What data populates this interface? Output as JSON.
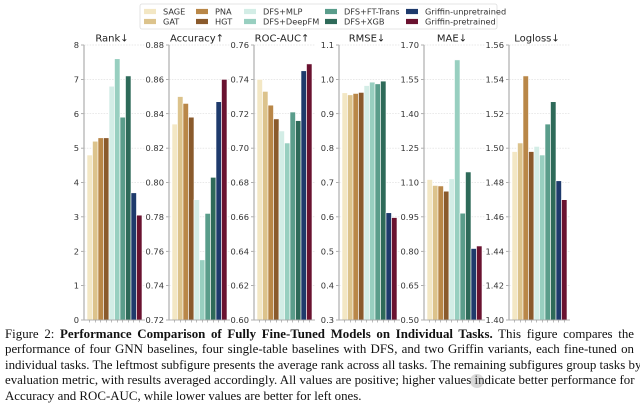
{
  "legend": {
    "entries": [
      {
        "name": "SAGE",
        "color": "#f3e7c4"
      },
      {
        "name": "GAT",
        "color": "#dcc38c"
      },
      {
        "name": "PNA",
        "color": "#b98748"
      },
      {
        "name": "HGT",
        "color": "#8a5a2c"
      },
      {
        "name": "DFS+MLP",
        "color": "#d3ede6"
      },
      {
        "name": "DFS+DeepFM",
        "color": "#98cfc0"
      },
      {
        "name": "DFS+FT-Trans",
        "color": "#5a9d8b"
      },
      {
        "name": "DFS+XGB",
        "color": "#2e6a59"
      },
      {
        "name": "Griffin-unpretrained",
        "color": "#1e3a6c"
      },
      {
        "name": "Griffin-pretrained",
        "color": "#6a1230"
      }
    ]
  },
  "chart_data": [
    {
      "type": "bar",
      "title": "Rank↓",
      "categories": [
        "SAGE",
        "GAT",
        "PNA",
        "HGT",
        "DFS+MLP",
        "DFS+DeepFM",
        "DFS+FT-Trans",
        "DFS+XGB",
        "Griffin-unpretrained",
        "Griffin-pretrained"
      ],
      "values": [
        4.8,
        5.2,
        5.3,
        5.3,
        6.8,
        7.6,
        5.9,
        7.1,
        3.7,
        3.05
      ],
      "ylim": [
        0,
        8
      ],
      "yticks": [
        0,
        1,
        2,
        3,
        4,
        5,
        6,
        7,
        8
      ],
      "ytick_labels": [
        "0",
        "1",
        "2",
        "3",
        "4",
        "5",
        "6",
        "7",
        "8"
      ],
      "grid": true
    },
    {
      "type": "bar",
      "title": "Accuracy↑",
      "categories": [
        "SAGE",
        "GAT",
        "PNA",
        "HGT",
        "DFS+MLP",
        "DFS+DeepFM",
        "DFS+FT-Trans",
        "DFS+XGB",
        "Griffin-unpretrained",
        "Griffin-pretrained"
      ],
      "values": [
        0.834,
        0.85,
        0.846,
        0.838,
        0.79,
        0.755,
        0.782,
        0.803,
        0.847,
        0.86
      ],
      "ylim": [
        0.72,
        0.88
      ],
      "yticks": [
        0.72,
        0.74,
        0.76,
        0.78,
        0.8,
        0.82,
        0.84,
        0.86,
        0.88
      ],
      "ytick_labels": [
        "0.72",
        "0.74",
        "0.76",
        "0.78",
        "0.80",
        "0.82",
        "0.84",
        "0.86",
        "0.88"
      ],
      "grid": true
    },
    {
      "type": "bar",
      "title": "ROC-AUC↑",
      "categories": [
        "SAGE",
        "GAT",
        "PNA",
        "HGT",
        "DFS+MLP",
        "DFS+DeepFM",
        "DFS+FT-Trans",
        "DFS+XGB",
        "Griffin-unpretrained",
        "Griffin-pretrained"
      ],
      "values": [
        0.74,
        0.733,
        0.725,
        0.717,
        0.71,
        0.703,
        0.721,
        0.716,
        0.745,
        0.749
      ],
      "ylim": [
        0.6,
        0.76
      ],
      "yticks": [
        0.6,
        0.62,
        0.64,
        0.66,
        0.68,
        0.7,
        0.72,
        0.74,
        0.76
      ],
      "ytick_labels": [
        "0.60",
        "0.62",
        "0.64",
        "0.66",
        "0.68",
        "0.70",
        "0.72",
        "0.74",
        "0.76"
      ],
      "grid": true
    },
    {
      "type": "bar",
      "title": "RMSE↓",
      "categories": [
        "SAGE",
        "GAT",
        "PNA",
        "HGT",
        "DFS+MLP",
        "DFS+DeepFM",
        "DFS+FT-Trans",
        "DFS+XGB",
        "Griffin-unpretrained",
        "Griffin-pretrained"
      ],
      "values": [
        0.961,
        0.955,
        0.959,
        0.962,
        0.982,
        0.992,
        0.987,
        0.995,
        0.612,
        0.598
      ],
      "ylim": [
        0.3,
        1.1
      ],
      "yticks": [
        0.3,
        0.4,
        0.5,
        0.6,
        0.7,
        0.8,
        0.9,
        1.0,
        1.1
      ],
      "ytick_labels": [
        "0.3",
        "0.4",
        "0.5",
        "0.6",
        "0.7",
        "0.8",
        "0.9",
        "1.0",
        "1.1"
      ],
      "grid": true
    },
    {
      "type": "bar",
      "title": "MAE↓",
      "categories": [
        "SAGE",
        "GAT",
        "PNA",
        "HGT",
        "DFS+MLP",
        "DFS+DeepFM",
        "DFS+FT-Trans",
        "DFS+XGB",
        "Griffin-unpretrained",
        "Griffin-pretrained"
      ],
      "values": [
        1.113,
        1.087,
        1.085,
        1.062,
        1.116,
        1.635,
        0.966,
        1.146,
        0.812,
        0.823
      ],
      "ylim": [
        0.5,
        1.7
      ],
      "yticks": [
        0.5,
        0.65,
        0.8,
        0.95,
        1.1,
        1.25,
        1.4,
        1.55,
        1.7
      ],
      "ytick_labels": [
        "0.50",
        "0.65",
        "0.80",
        "0.95",
        "1.10",
        "1.25",
        "1.40",
        "1.55",
        "1.70"
      ],
      "grid": true
    },
    {
      "type": "bar",
      "title": "Logloss↓",
      "categories": [
        "SAGE",
        "GAT",
        "PNA",
        "HGT",
        "DFS+MLP",
        "DFS+DeepFM",
        "DFS+FT-Trans",
        "DFS+XGB",
        "Griffin-unpretrained",
        "Griffin-pretrained"
      ],
      "values": [
        1.498,
        1.503,
        1.542,
        1.498,
        1.501,
        1.496,
        1.514,
        1.527,
        1.481,
        1.47
      ],
      "ylim": [
        1.4,
        1.56
      ],
      "yticks": [
        1.4,
        1.42,
        1.44,
        1.46,
        1.48,
        1.5,
        1.52,
        1.54,
        1.56
      ],
      "ytick_labels": [
        "1.40",
        "1.42",
        "1.44",
        "1.46",
        "1.48",
        "1.50",
        "1.52",
        "1.54",
        "1.56"
      ],
      "grid": true
    }
  ],
  "caption": {
    "label": "Figure 2:",
    "bold_title": "Performance Comparison of Fully Fine-Tuned Models on Individual Tasks.",
    "line1_rest": "This figure compares the",
    "lines": [
      "performance of four GNN baselines, four single-table baselines with DFS, and two Griffin variants, each fine-tuned on",
      "individual tasks. The leftmost subfigure presents the average rank across all tasks. The remaining subfigures group tasks by",
      "evaluation metric, with results averaged accordingly. All values are positive; higher values indicate better performance for",
      "Accuracy and ROC-AUC, while lower values are better for left ones."
    ]
  }
}
